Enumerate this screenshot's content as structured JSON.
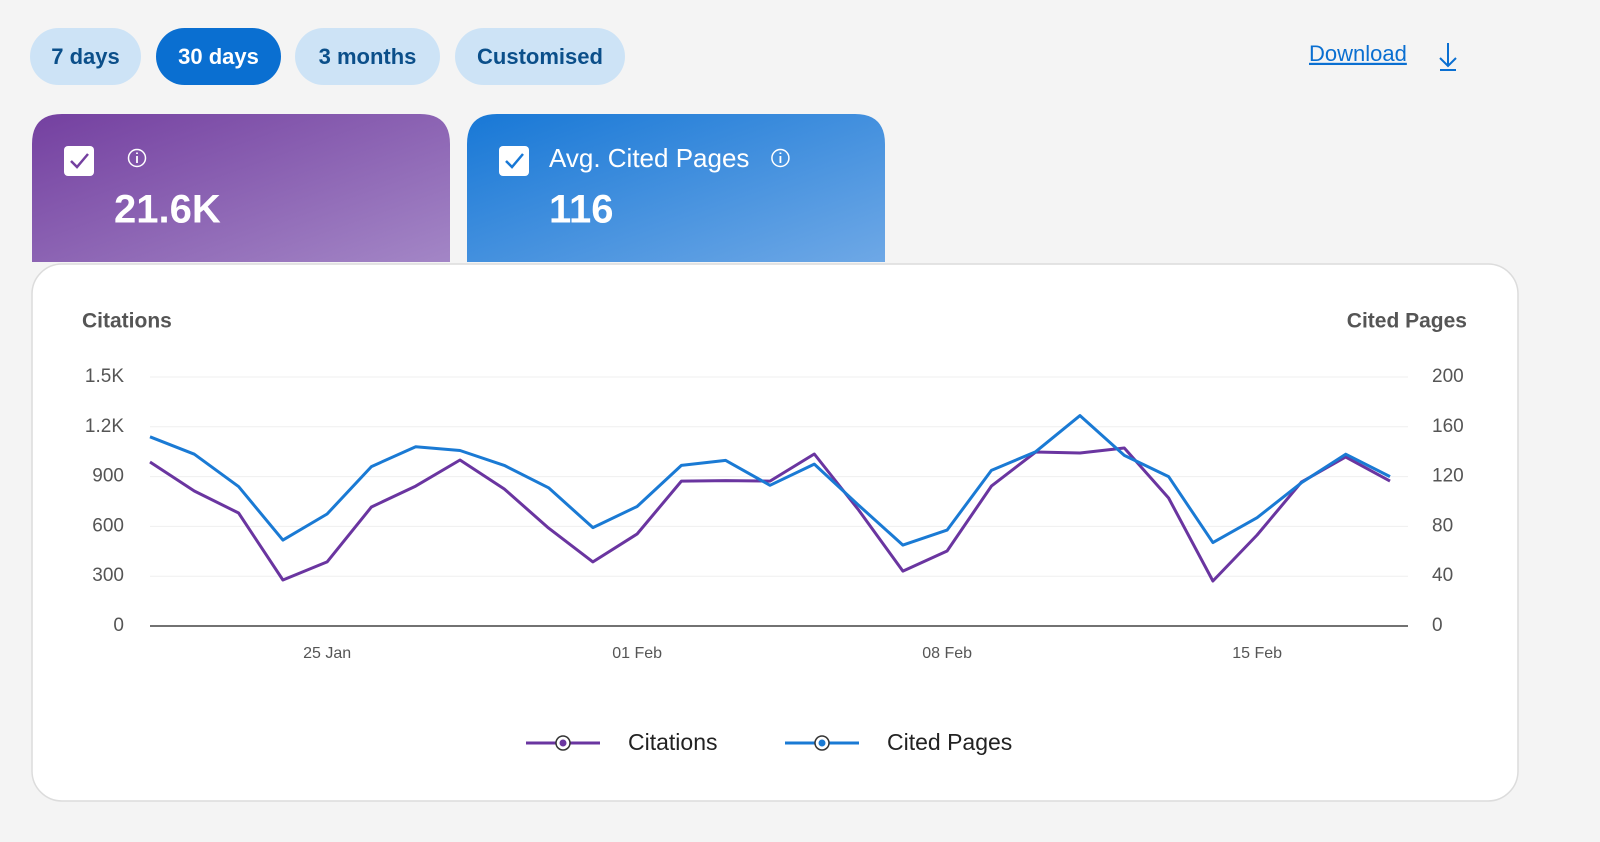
{
  "filters": [
    {
      "label": "7 days",
      "selected": false
    },
    {
      "label": "30 days",
      "selected": true
    },
    {
      "label": "3 months",
      "selected": false
    },
    {
      "label": "Customised",
      "selected": false
    }
  ],
  "download": "Download",
  "cards": [
    {
      "value": "21.6K",
      "color_from": "#7440a0",
      "color_to": "#a386c6"
    },
    {
      "label": "Avg. Cited Pages",
      "value": "116",
      "color_from": "#1878d6",
      "color_to": "#6ea8e6"
    }
  ],
  "chart_data": {
    "type": "line",
    "ylabel": "Citations",
    "y2label": "Cited Pages",
    "categories": [
      null,
      null,
      null,
      null,
      "25 Jan",
      null,
      null,
      null,
      null,
      null,
      null,
      "01 Feb",
      null,
      null,
      null,
      null,
      null,
      null,
      "08 Feb",
      null,
      null,
      null,
      null,
      null,
      null,
      "15 Feb",
      null,
      null,
      null
    ],
    "series": [
      {
        "name": "Citations",
        "color": "#6a35a0",
        "values": [
          988,
          813,
          681,
          277,
          386,
          717,
          843,
          1000,
          825,
          590,
          386,
          554,
          873,
          876,
          873,
          1036,
          699,
          331,
          452,
          843,
          1048,
          1042,
          1072,
          771,
          271,
          548,
          867,
          1018,
          873
        ]
      },
      {
        "name": "Cited Pages",
        "color": "#1a7ad4",
        "axis": "y2",
        "values": [
          152,
          138,
          112,
          69,
          90,
          128,
          144,
          141,
          129,
          111,
          79,
          96,
          129,
          133,
          113,
          130,
          97,
          65,
          77,
          125,
          140,
          169,
          137,
          120,
          67,
          87,
          115,
          138,
          120
        ]
      }
    ],
    "ylim": [
      0,
      1500
    ],
    "yticks": [
      0,
      300,
      600,
      900,
      {
        "value": 1200,
        "label": "1.2K"
      },
      {
        "value": 1500,
        "label": "1.5K"
      }
    ],
    "y2lim": [
      0,
      200
    ],
    "y2ticks": [
      0,
      40,
      80,
      120,
      160,
      200
    ],
    "grid": true,
    "legend": "bottom"
  }
}
